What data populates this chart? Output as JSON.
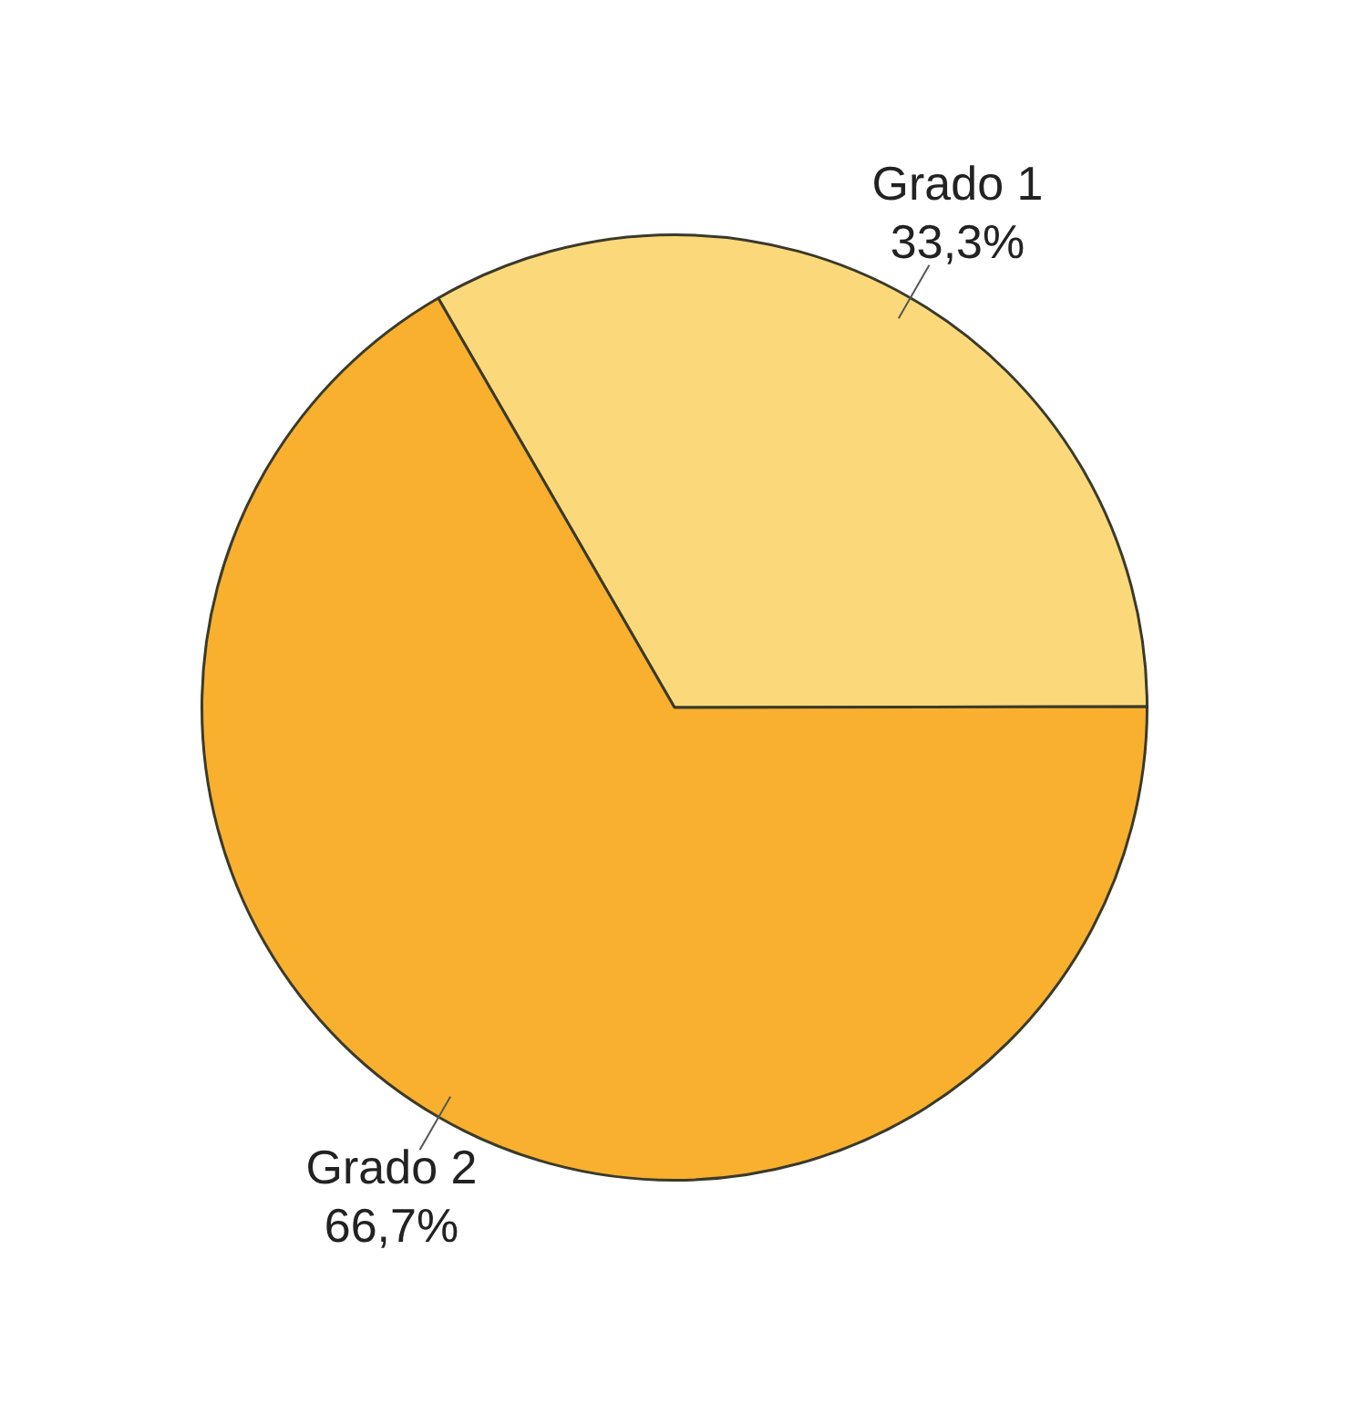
{
  "chart_data": {
    "type": "pie",
    "categories": [
      "Grado 1",
      "Grado 2"
    ],
    "values": [
      33.3,
      66.7
    ],
    "colors": [
      "#fbd97a",
      "#f9b02f"
    ],
    "value_labels": [
      "33,3%",
      "66,7%"
    ]
  }
}
